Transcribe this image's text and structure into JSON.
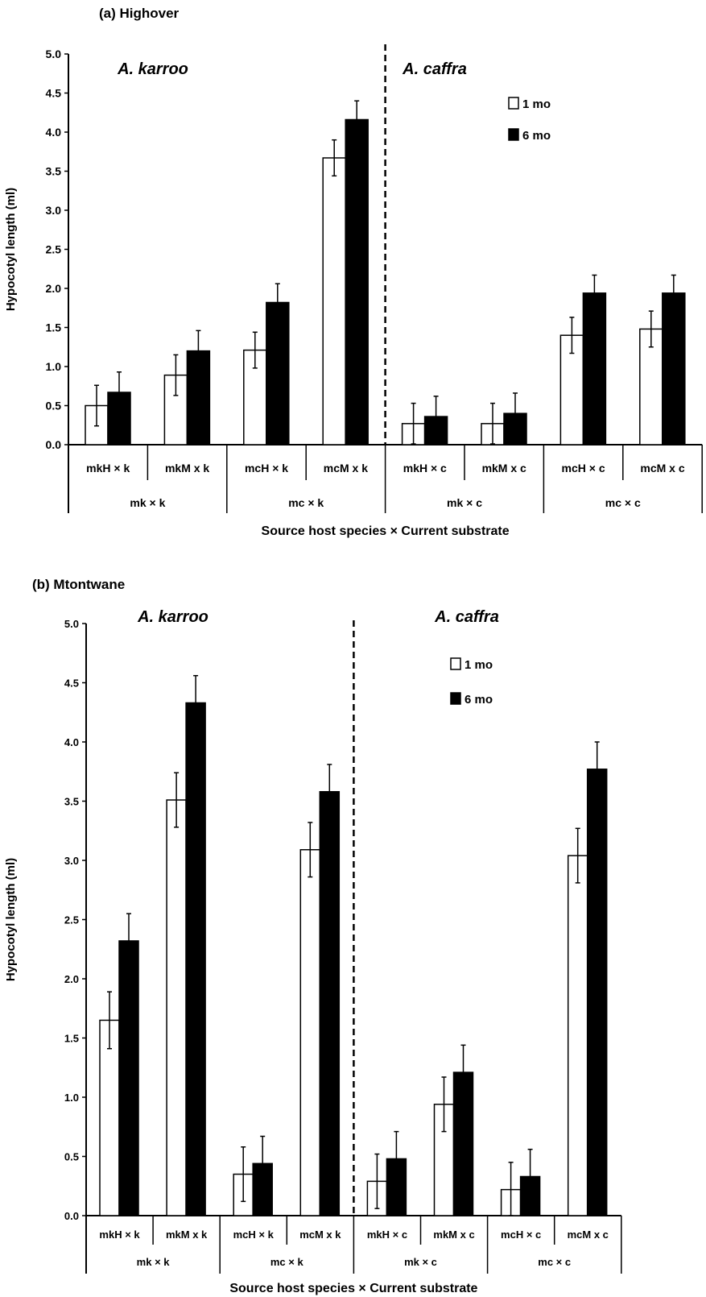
{
  "chart_data": [
    {
      "type": "bar",
      "title": "(a) Highover",
      "xlabel": "Source host species × Current substrate",
      "ylabel": "Hypocotyl length (ml)",
      "ylim": [
        0,
        5
      ],
      "yticks": [
        "0.0",
        "0.5",
        "1.0",
        "1.5",
        "2.0",
        "2.5",
        "3.0",
        "3.5",
        "4.0",
        "4.5",
        "5.0"
      ],
      "annotations": [
        "A. karroo",
        "A. caffra"
      ],
      "legend_position": "top-right",
      "categories": [
        "mkH × k",
        "mkM x k",
        "mcH × k",
        "mcM x k",
        "mkH × c",
        "mkM x c",
        "mcH × c",
        "mcM x c"
      ],
      "groups": [
        "mk × k",
        "mc × k",
        "mk × c",
        "mc × c"
      ],
      "series": [
        {
          "name": "1 mo",
          "color": "#ffffff",
          "values": [
            0.5,
            0.89,
            1.21,
            3.67,
            0.27,
            0.27,
            1.4,
            1.48
          ],
          "errors": [
            0.26,
            0.26,
            0.23,
            0.23,
            0.26,
            0.26,
            0.23,
            0.23
          ]
        },
        {
          "name": "6 mo",
          "color": "#000000",
          "values": [
            0.67,
            1.2,
            1.82,
            4.16,
            0.36,
            0.4,
            1.94,
            1.94
          ],
          "errors": [
            0.26,
            0.26,
            0.24,
            0.24,
            0.26,
            0.26,
            0.23,
            0.23
          ]
        }
      ]
    },
    {
      "type": "bar",
      "title": "(b) Mtontwane",
      "xlabel": "Source host species × Current substrate",
      "ylabel": "Hypocotyl length (ml)",
      "ylim": [
        0,
        5
      ],
      "yticks": [
        "0.0",
        "0.5",
        "1.0",
        "1.5",
        "2.0",
        "2.5",
        "3.0",
        "3.5",
        "4.0",
        "4.5",
        "5.0"
      ],
      "annotations": [
        "A. karroo",
        "A. caffra"
      ],
      "legend_position": "top-right",
      "categories": [
        "mkH × k",
        "mkM x k",
        "mcH × k",
        "mcM x k",
        "mkH × c",
        "mkM x c",
        "mcH × c",
        "mcM x c"
      ],
      "groups": [
        "mk × k",
        "mc × k",
        "mk × c",
        "mc × c"
      ],
      "series": [
        {
          "name": "1 mo",
          "color": "#ffffff",
          "values": [
            1.65,
            3.51,
            0.35,
            3.09,
            0.29,
            0.94,
            0.22,
            3.04
          ],
          "errors": [
            0.24,
            0.23,
            0.23,
            0.23,
            0.23,
            0.23,
            0.23,
            0.23
          ]
        },
        {
          "name": "6 mo",
          "color": "#000000",
          "values": [
            2.32,
            4.33,
            0.44,
            3.58,
            0.48,
            1.21,
            0.33,
            3.77
          ],
          "errors": [
            0.23,
            0.23,
            0.23,
            0.23,
            0.23,
            0.23,
            0.23,
            0.23
          ]
        }
      ]
    }
  ]
}
